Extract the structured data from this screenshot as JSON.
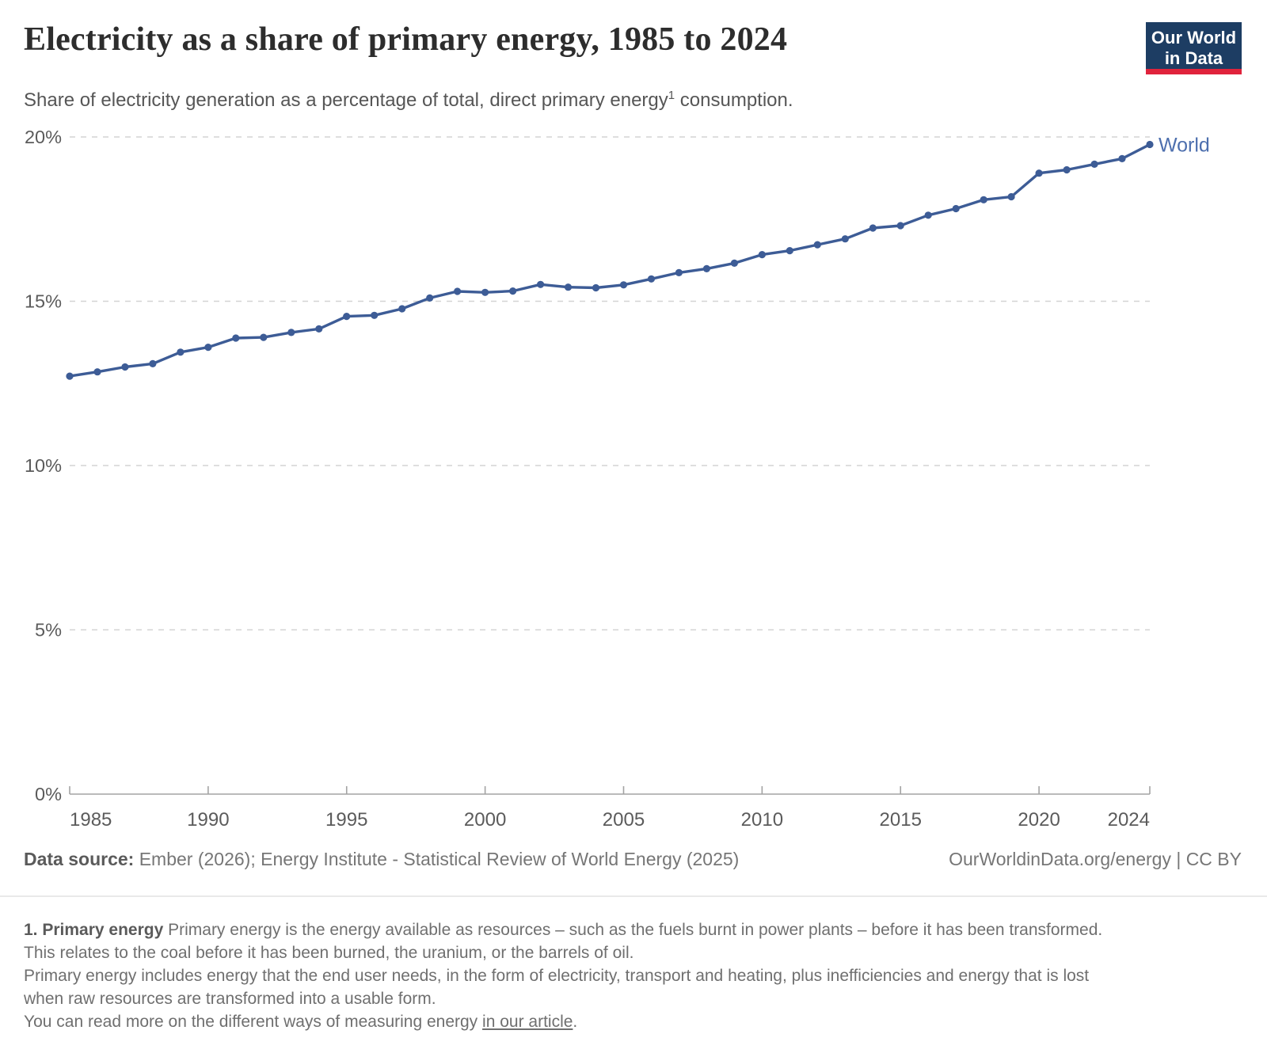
{
  "header": {
    "title": "Electricity as a share of primary energy, 1985 to 2024",
    "subtitle_pre": "Share of electricity generation as a percentage of total, direct primary energy",
    "subtitle_sup": "1",
    "subtitle_post": " consumption.",
    "logo_line1": "Our World",
    "logo_line2": "in Data",
    "logo_bg_color": "#1d3d63",
    "logo_accent_color": "#e0233c"
  },
  "chart_data": {
    "type": "line",
    "title": "Electricity as a share of primary energy, 1985 to 2024",
    "xlabel": "",
    "ylabel": "",
    "xlim": [
      1985,
      2024
    ],
    "ylim": [
      0,
      20
    ],
    "grid": "dashed-horizontal-gridlines",
    "legend_position": "end-of-line-label",
    "x_ticks": [
      1985,
      1990,
      1995,
      2000,
      2005,
      2010,
      2015,
      2020,
      2024
    ],
    "y_ticks": [
      0,
      5,
      10,
      15,
      20
    ],
    "y_tick_suffix": "%",
    "series": [
      {
        "name": "World",
        "color": "#3d5c96",
        "label_color": "#4d6fae",
        "x": [
          1985,
          1986,
          1987,
          1988,
          1989,
          1990,
          1991,
          1992,
          1993,
          1994,
          1995,
          1996,
          1997,
          1998,
          1999,
          2000,
          2001,
          2002,
          2003,
          2004,
          2005,
          2006,
          2007,
          2008,
          2009,
          2010,
          2011,
          2012,
          2013,
          2014,
          2015,
          2016,
          2017,
          2018,
          2019,
          2020,
          2021,
          2022,
          2023,
          2024
        ],
        "values": [
          12.72,
          12.85,
          13.0,
          13.1,
          13.45,
          13.6,
          13.88,
          13.9,
          14.05,
          14.16,
          14.54,
          14.57,
          14.77,
          15.1,
          15.3,
          15.27,
          15.31,
          15.51,
          15.43,
          15.41,
          15.5,
          15.68,
          15.87,
          15.99,
          16.16,
          16.42,
          16.54,
          16.72,
          16.9,
          17.23,
          17.3,
          17.62,
          17.82,
          18.09,
          18.18,
          18.9,
          19.0,
          19.17,
          19.34,
          19.77
        ]
      }
    ]
  },
  "footer": {
    "source_bold": "Data source:",
    "source_text": " Ember (2026); Energy Institute - Statistical Review of World Energy (2025)",
    "credit": "OurWorldinData.org/energy | CC BY"
  },
  "footnote": {
    "lines": [
      [
        {
          "style": "bold",
          "text": "1. Primary energy"
        },
        {
          "style": "plain",
          "text": " Primary energy is the energy available as resources – such as the fuels burnt in power plants – before it has been transformed."
        }
      ],
      [
        {
          "style": "plain",
          "text": "This relates to the coal before it has been burned, the uranium, or the barrels of oil."
        }
      ],
      [
        {
          "style": "plain",
          "text": "Primary energy includes energy that the end user needs, in the form of electricity, transport and heating, plus inefficiencies and energy that is lost"
        }
      ],
      [
        {
          "style": "plain",
          "text": "when raw resources are transformed into a usable form."
        }
      ],
      [
        {
          "style": "plain",
          "text": "You can read more on the different ways of measuring energy "
        },
        {
          "style": "link",
          "text": "in our article"
        },
        {
          "style": "plain",
          "text": "."
        }
      ]
    ]
  }
}
